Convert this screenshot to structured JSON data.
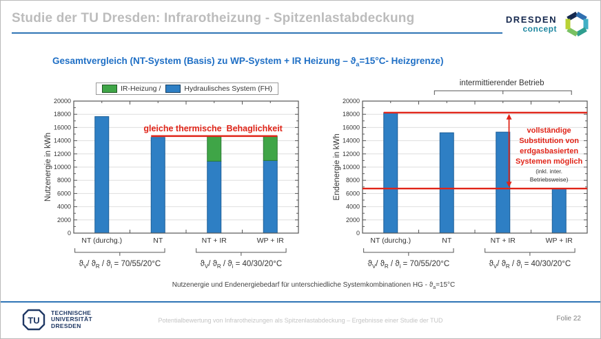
{
  "header": {
    "title": "Studie der TU Dresden: Infrarotheizung - Spitzenlastabdeckung",
    "brand": {
      "name": "DRESDEN",
      "sub": "concept"
    }
  },
  "subtitle": {
    "pre": "Gesamtvergleich (NT-System (Basis) zu WP-System + IR Heizung –  ϑ",
    "sub": "a",
    "post": "=15°C- Heizgrenze)"
  },
  "legend": {
    "items": [
      {
        "label": "IR-Heizung /",
        "color": "#3fa547"
      },
      {
        "label": "Hydraulisches System (FH)",
        "color": "#2e7fc4"
      }
    ]
  },
  "chart_data": [
    {
      "type": "bar",
      "title": "Nutzenergie für unterschiedliche Systemkombinationen",
      "xlabel": "",
      "ylabel": "Nutzenergie in kWh",
      "ylim": [
        0,
        20000
      ],
      "ytick_step": 2000,
      "grid": true,
      "categories": [
        "NT (durchg.)",
        "NT",
        "NT + IR",
        "WP + IR"
      ],
      "series": [
        {
          "name": "Hydraulisches System (FH)",
          "color": "#2e7fc4",
          "stroke": "#1b5e97",
          "values": [
            17650,
            14500,
            10900,
            11000
          ]
        },
        {
          "name": "IR-Heizung",
          "color": "#3fa547",
          "stroke": "#2c7a33",
          "values": [
            0,
            0,
            3800,
            3700
          ]
        }
      ],
      "group_labels": [
        {
          "cats": [
            0,
            1
          ],
          "segments": [
            {
              "t": "ϑ"
            },
            {
              "s": "V"
            },
            {
              "t": "/ ϑ"
            },
            {
              "s": "R"
            },
            {
              "t": " / ϑ"
            },
            {
              "s": "i"
            },
            {
              "t": " = 70/55/20°C"
            }
          ]
        },
        {
          "cats": [
            2,
            3
          ],
          "segments": [
            {
              "t": "ϑ"
            },
            {
              "s": "V"
            },
            {
              "t": "/ ϑ"
            },
            {
              "s": "R"
            },
            {
              "t": " / ϑ"
            },
            {
              "s": "i"
            },
            {
              "t": " = 40/30/20°C"
            }
          ]
        }
      ],
      "annotations": {
        "comfort_line": {
          "value": 14700,
          "label": "gleiche thermische  Behaglichkeit"
        }
      }
    },
    {
      "type": "bar",
      "title": "Endenergiebedarf für unterschiedliche Systemkombinationen",
      "xlabel": "",
      "ylabel": "Endenergie in kWh",
      "ylim": [
        0,
        20000
      ],
      "ytick_step": 2000,
      "grid": true,
      "categories": [
        "NT (durchg.)",
        "NT",
        "NT + IR",
        "WP + IR"
      ],
      "series": [
        {
          "name": "Hydraulisches System (FH)",
          "color": "#2e7fc4",
          "stroke": "#1b5e97",
          "values": [
            18250,
            15200,
            15300,
            6750
          ]
        }
      ],
      "group_labels": [
        {
          "cats": [
            0,
            1
          ],
          "segments": [
            {
              "t": "ϑ"
            },
            {
              "s": "V"
            },
            {
              "t": "/ ϑ"
            },
            {
              "s": "R"
            },
            {
              "t": " / ϑ"
            },
            {
              "s": "i"
            },
            {
              "t": " = 70/55/20°C"
            }
          ]
        },
        {
          "cats": [
            2,
            3
          ],
          "segments": [
            {
              "t": "ϑ"
            },
            {
              "s": "V"
            },
            {
              "t": "/ ϑ"
            },
            {
              "s": "R"
            },
            {
              "t": " / ϑ"
            },
            {
              "s": "i"
            },
            {
              "t": " = 40/30/20°C"
            }
          ]
        }
      ],
      "annotations": {
        "top_line_value": 18250,
        "bottom_line_value": 6750,
        "substitution_text": [
          "vollständige",
          "Substitution von",
          "erdgasbasierten",
          "Systemen möglich"
        ],
        "substitution_note": [
          "(inkl. inter.",
          "Betriebsweise)"
        ],
        "intermittent_label": "intermittierender Betrieb"
      }
    }
  ],
  "caption": {
    "pre": "Nutzenergie und Endenergiebedarf für unterschiedliche Systemkombinationen HG - ϑ",
    "sub": "a",
    "post": "=15°C"
  },
  "footer": {
    "logo_monogram": "TU",
    "institution": [
      "TECHNISCHE",
      "UNIVERSITÄT",
      "DRESDEN"
    ],
    "center": "Potentialbewertung von Infrarotheizungen als Spitzenlastabdeckung – Ergebnisse einer Studie der TUD",
    "page": "Folie 22"
  },
  "colors": {
    "accent_blue": "#2e74b5",
    "annotation_red": "#e02418",
    "bar_blue": "#2e7fc4",
    "bar_green": "#3fa547",
    "grid": "#dedede",
    "axis": "#555555",
    "ring": [
      "#16294f",
      "#2f6fb0",
      "#42b0c5",
      "#2f9e8f",
      "#79c162",
      "#b9d235"
    ]
  }
}
